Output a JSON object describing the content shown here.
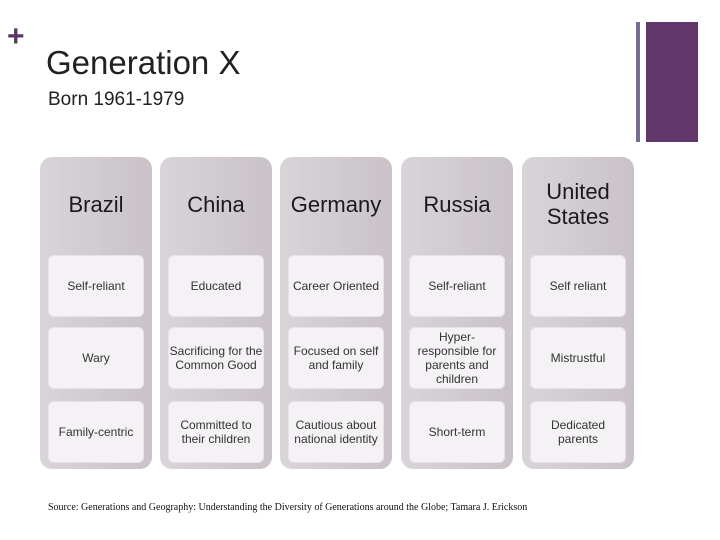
{
  "header": {
    "plus": "+",
    "title": "Generation X",
    "subtitle": "Born 1961-1979"
  },
  "colors": {
    "accent_thin": "#7a6a96",
    "accent_thick": "#61366a",
    "column_bg": "#d0cad0",
    "cell_bg": "#f4f2f4"
  },
  "columns": [
    {
      "name": "Brazil",
      "traits": [
        "Self-reliant",
        "Wary",
        "Family-centric"
      ]
    },
    {
      "name": "China",
      "traits": [
        "Educated",
        "Sacrificing for the Common Good",
        "Committed to their children"
      ]
    },
    {
      "name": "Germany",
      "traits": [
        "Career Oriented",
        "Focused on self and family",
        "Cautious about national identity"
      ]
    },
    {
      "name": "Russia",
      "traits": [
        "Self-reliant",
        "Hyper-responsible for parents and children",
        "Short-term"
      ]
    },
    {
      "name": "United States",
      "traits": [
        "Self reliant",
        "Mistrustful",
        "Dedicated parents"
      ]
    }
  ],
  "source": "Source: Generations and Geography: Understanding the Diversity of Generations around the Globe; Tamara J. Erickson"
}
